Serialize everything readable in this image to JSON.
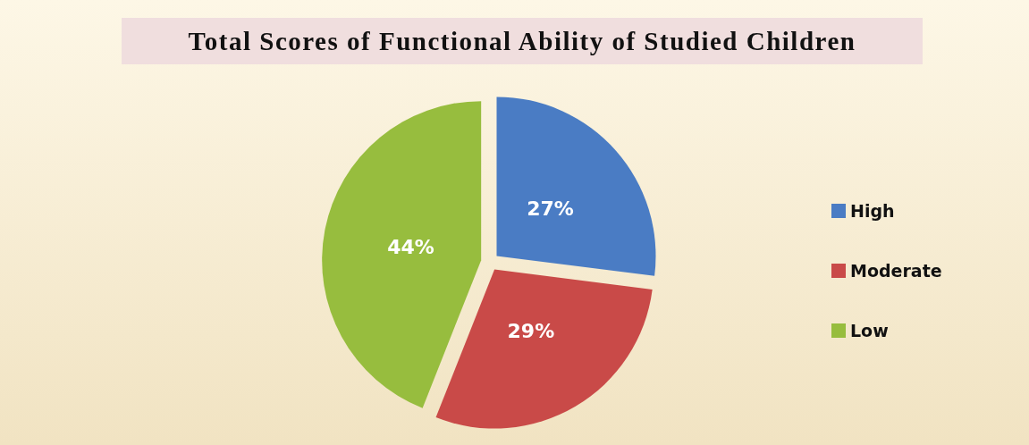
{
  "chart_data": {
    "type": "pie",
    "title": "Total Scores of Functional Ability of Studied Children",
    "categories": [
      "High",
      "Moderate",
      "Low"
    ],
    "values": [
      27,
      29,
      44
    ],
    "colors": [
      "#4a7cc4",
      "#c94a48",
      "#97bd3e"
    ],
    "value_labels": [
      "27%",
      "29%",
      "44%"
    ],
    "legend": "right"
  }
}
